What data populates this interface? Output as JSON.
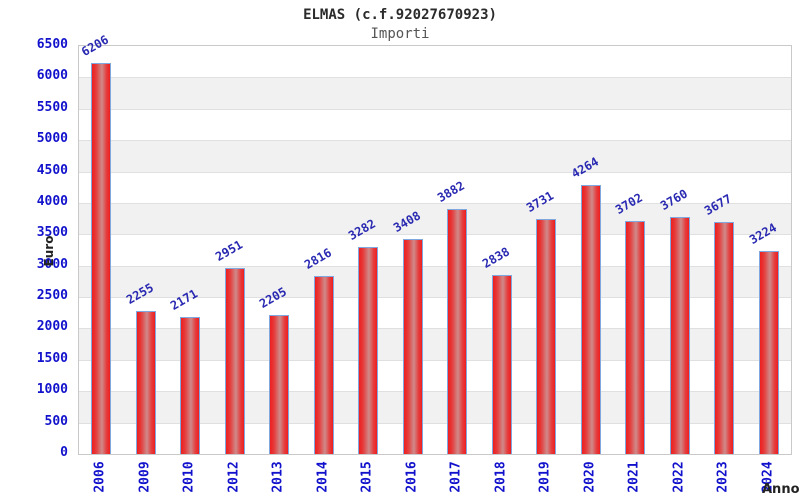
{
  "chart_data": {
    "type": "bar",
    "title": "ELMAS (c.f.92027670923)",
    "subtitle": "Importi",
    "xlabel": "Anno",
    "ylabel": "Euro",
    "categories": [
      "2006",
      "2009",
      "2010",
      "2012",
      "2013",
      "2014",
      "2015",
      "2016",
      "2017",
      "2018",
      "2019",
      "2020",
      "2021",
      "2022",
      "2023",
      "2024"
    ],
    "values": [
      6206,
      2255,
      2171,
      2951,
      2205,
      2816,
      3282,
      3408,
      3882,
      2838,
      3731,
      4264,
      3702,
      3760,
      3677,
      3224
    ],
    "ylim": [
      0,
      6500
    ],
    "ytick_step": 500,
    "grid": true,
    "legend": "none",
    "colors": {
      "bar_edge_red": "#ee1f1f",
      "bar_mid": "#cf8a8a",
      "bar_border": "#7fa8e0",
      "tick_text": "#1212cc",
      "value_text": "#2929b2",
      "band_gray": "#f1f1f1",
      "band_white": "#ffffff",
      "gridline": "#e0e0e0",
      "plot_border": "#c9c9c9",
      "title_text": "#2b2b2b",
      "subtitle_text": "#555555",
      "axis_title_text": "#222222"
    }
  }
}
